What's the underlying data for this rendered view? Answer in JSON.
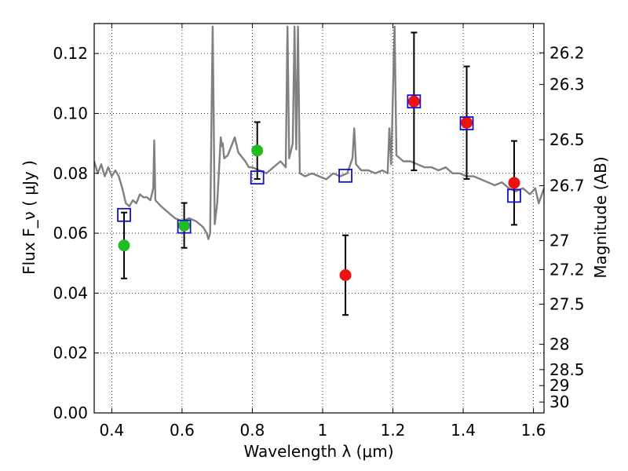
{
  "chart_data": {
    "type": "scatter",
    "xlabel": "Wavelength  λ (μm)",
    "ylabel": "Flux  F_ν  ( μJy )",
    "ylabel_right": "Magnitude (AB)",
    "xlim": [
      0.35,
      1.63
    ],
    "ylim": [
      0.0,
      0.13
    ],
    "grid": true,
    "x_ticks": [
      {
        "v": 0.4,
        "label": "0.4"
      },
      {
        "v": 0.6,
        "label": "0.6"
      },
      {
        "v": 0.8,
        "label": "0.8"
      },
      {
        "v": 1.0,
        "label": "1"
      },
      {
        "v": 1.2,
        "label": "1.2"
      },
      {
        "v": 1.4,
        "label": "1.4"
      },
      {
        "v": 1.6,
        "label": "1.6"
      }
    ],
    "y_ticks": [
      {
        "v": 0.0,
        "label": "0.00"
      },
      {
        "v": 0.02,
        "label": "0.02"
      },
      {
        "v": 0.04,
        "label": "0.04"
      },
      {
        "v": 0.06,
        "label": "0.06"
      },
      {
        "v": 0.08,
        "label": "0.08"
      },
      {
        "v": 0.1,
        "label": "0.10"
      },
      {
        "v": 0.12,
        "label": "0.12"
      }
    ],
    "mag_ticks": [
      {
        "mag": 26.2,
        "label": "26.2"
      },
      {
        "mag": 26.3,
        "label": "26.3"
      },
      {
        "mag": 26.5,
        "label": "26.5"
      },
      {
        "mag": 26.7,
        "label": "26.7"
      },
      {
        "mag": 27,
        "label": "27"
      },
      {
        "mag": 27.2,
        "label": "27.2"
      },
      {
        "mag": 27.5,
        "label": "27.5"
      },
      {
        "mag": 28,
        "label": "28"
      },
      {
        "mag": 28.5,
        "label": "28.5"
      },
      {
        "mag": 29,
        "label": "29"
      },
      {
        "mag": 30,
        "label": "30"
      }
    ],
    "series": [
      {
        "marker": "circle",
        "color": "#22bb22",
        "points": [
          {
            "x": 0.435,
            "y": 0.0559,
            "err": 0.011
          },
          {
            "x": 0.606,
            "y": 0.0626,
            "err": 0.0075
          },
          {
            "x": 0.814,
            "y": 0.0876,
            "err": 0.0095
          }
        ]
      },
      {
        "marker": "circle",
        "color": "#ee1111",
        "points": [
          {
            "x": 1.065,
            "y": 0.046,
            "err": 0.0133
          },
          {
            "x": 1.26,
            "y": 0.104,
            "err": 0.023
          },
          {
            "x": 1.41,
            "y": 0.0969,
            "err": 0.0188
          },
          {
            "x": 1.545,
            "y": 0.0768,
            "err": 0.014
          }
        ]
      },
      {
        "marker": "open-square",
        "color": "#1111cc",
        "points": [
          {
            "x": 0.435,
            "y": 0.0661
          },
          {
            "x": 0.606,
            "y": 0.0622
          },
          {
            "x": 0.814,
            "y": 0.0786
          },
          {
            "x": 1.065,
            "y": 0.0792
          },
          {
            "x": 1.26,
            "y": 0.104
          },
          {
            "x": 1.41,
            "y": 0.0967
          },
          {
            "x": 1.545,
            "y": 0.0725
          }
        ]
      },
      {
        "marker": "line",
        "color": "#808080",
        "points": [
          [
            0.35,
            0.084
          ],
          [
            0.36,
            0.08
          ],
          [
            0.37,
            0.083
          ],
          [
            0.38,
            0.079
          ],
          [
            0.39,
            0.082
          ],
          [
            0.4,
            0.079
          ],
          [
            0.41,
            0.081
          ],
          [
            0.42,
            0.079
          ],
          [
            0.43,
            0.075
          ],
          [
            0.44,
            0.07
          ],
          [
            0.45,
            0.069
          ],
          [
            0.46,
            0.071
          ],
          [
            0.47,
            0.07
          ],
          [
            0.48,
            0.073
          ],
          [
            0.49,
            0.072
          ],
          [
            0.5,
            0.072
          ],
          [
            0.51,
            0.071
          ],
          [
            0.518,
            0.075
          ],
          [
            0.521,
            0.091
          ],
          [
            0.524,
            0.071
          ],
          [
            0.54,
            0.069
          ],
          [
            0.56,
            0.067
          ],
          [
            0.58,
            0.065
          ],
          [
            0.6,
            0.064
          ],
          [
            0.62,
            0.065
          ],
          [
            0.64,
            0.064
          ],
          [
            0.66,
            0.062
          ],
          [
            0.67,
            0.06
          ],
          [
            0.675,
            0.058
          ],
          [
            0.68,
            0.06
          ],
          [
            0.684,
            0.1
          ],
          [
            0.687,
            0.129
          ],
          [
            0.69,
            0.1
          ],
          [
            0.693,
            0.063
          ],
          [
            0.7,
            0.07
          ],
          [
            0.71,
            0.092
          ],
          [
            0.714,
            0.089
          ],
          [
            0.716,
            0.09
          ],
          [
            0.72,
            0.085
          ],
          [
            0.73,
            0.086
          ],
          [
            0.75,
            0.092
          ],
          [
            0.76,
            0.087
          ],
          [
            0.78,
            0.084
          ],
          [
            0.79,
            0.082
          ],
          [
            0.8,
            0.082
          ],
          [
            0.82,
            0.081
          ],
          [
            0.84,
            0.08
          ],
          [
            0.86,
            0.082
          ],
          [
            0.88,
            0.084
          ],
          [
            0.895,
            0.082
          ],
          [
            0.9,
            0.129
          ],
          [
            0.905,
            0.085
          ],
          [
            0.915,
            0.09
          ],
          [
            0.92,
            0.129
          ],
          [
            0.925,
            0.088
          ],
          [
            0.93,
            0.129
          ],
          [
            0.935,
            0.08
          ],
          [
            0.95,
            0.079
          ],
          [
            0.97,
            0.08
          ],
          [
            0.99,
            0.079
          ],
          [
            1.01,
            0.078
          ],
          [
            1.03,
            0.08
          ],
          [
            1.05,
            0.079
          ],
          [
            1.07,
            0.08
          ],
          [
            1.085,
            0.085
          ],
          [
            1.09,
            0.095
          ],
          [
            1.095,
            0.083
          ],
          [
            1.11,
            0.081
          ],
          [
            1.13,
            0.081
          ],
          [
            1.15,
            0.08
          ],
          [
            1.17,
            0.081
          ],
          [
            1.185,
            0.08
          ],
          [
            1.19,
            0.095
          ],
          [
            1.195,
            0.083
          ],
          [
            1.205,
            0.129
          ],
          [
            1.21,
            0.086
          ],
          [
            1.23,
            0.084
          ],
          [
            1.25,
            0.084
          ],
          [
            1.27,
            0.083
          ],
          [
            1.29,
            0.082
          ],
          [
            1.31,
            0.082
          ],
          [
            1.33,
            0.081
          ],
          [
            1.35,
            0.082
          ],
          [
            1.37,
            0.08
          ],
          [
            1.39,
            0.08
          ],
          [
            1.41,
            0.079
          ],
          [
            1.43,
            0.079
          ],
          [
            1.45,
            0.078
          ],
          [
            1.47,
            0.077
          ],
          [
            1.49,
            0.076
          ],
          [
            1.51,
            0.077
          ],
          [
            1.53,
            0.075
          ],
          [
            1.55,
            0.074
          ],
          [
            1.57,
            0.075
          ],
          [
            1.59,
            0.073
          ],
          [
            1.605,
            0.075
          ],
          [
            1.615,
            0.07
          ],
          [
            1.63,
            0.075
          ]
        ]
      }
    ]
  }
}
